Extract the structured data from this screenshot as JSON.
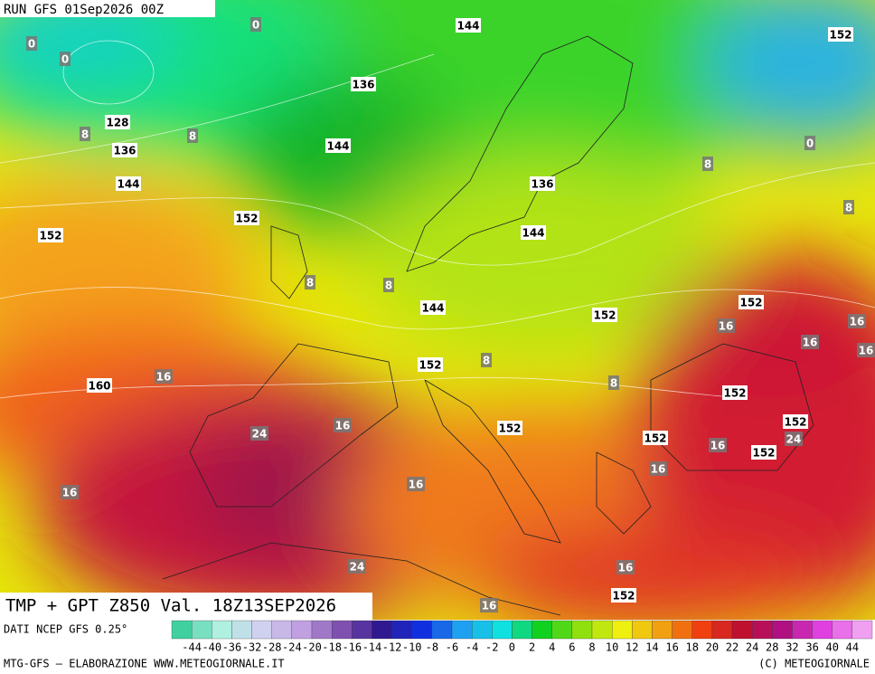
{
  "header": {
    "run": "RUN GFS 01Sep2026 00Z",
    "field": "TMP + GPT Z850 Val. 18Z13SEP2026"
  },
  "gpt_labels": [
    "144",
    "152",
    "136",
    "128",
    "136",
    "144",
    "144",
    "136",
    "152",
    "152",
    "144",
    "144",
    "152",
    "152",
    "160",
    "152",
    "152",
    "152",
    "152",
    "152",
    "152",
    "152"
  ],
  "tmp_labels": [
    "0",
    "0",
    "0",
    "8",
    "8",
    "0",
    "8",
    "8",
    "8",
    "8",
    "16",
    "16",
    "16",
    "16",
    "16",
    "8",
    "8",
    "16",
    "24",
    "24",
    "16",
    "16",
    "16",
    "16",
    "24",
    "16",
    "16"
  ],
  "legend": {
    "source": "DATI NCEP GFS 0.25°",
    "labels": [
      "-44",
      "-40",
      "-36",
      "-32",
      "-28",
      "-24",
      "-20",
      "-18",
      "-16",
      "-14",
      "-12",
      "-10",
      "-8",
      "-6",
      "-4",
      "-2",
      "0",
      "2",
      "4",
      "6",
      "8",
      "10",
      "12",
      "14",
      "16",
      "18",
      "20",
      "22",
      "24",
      "28",
      "32",
      "36",
      "40",
      "44"
    ]
  },
  "footer": {
    "left": "MTG-GFS – ELABORAZIONE WWW.METEOGIORNALE.IT",
    "right": "(C) METEOGIORNALE"
  }
}
